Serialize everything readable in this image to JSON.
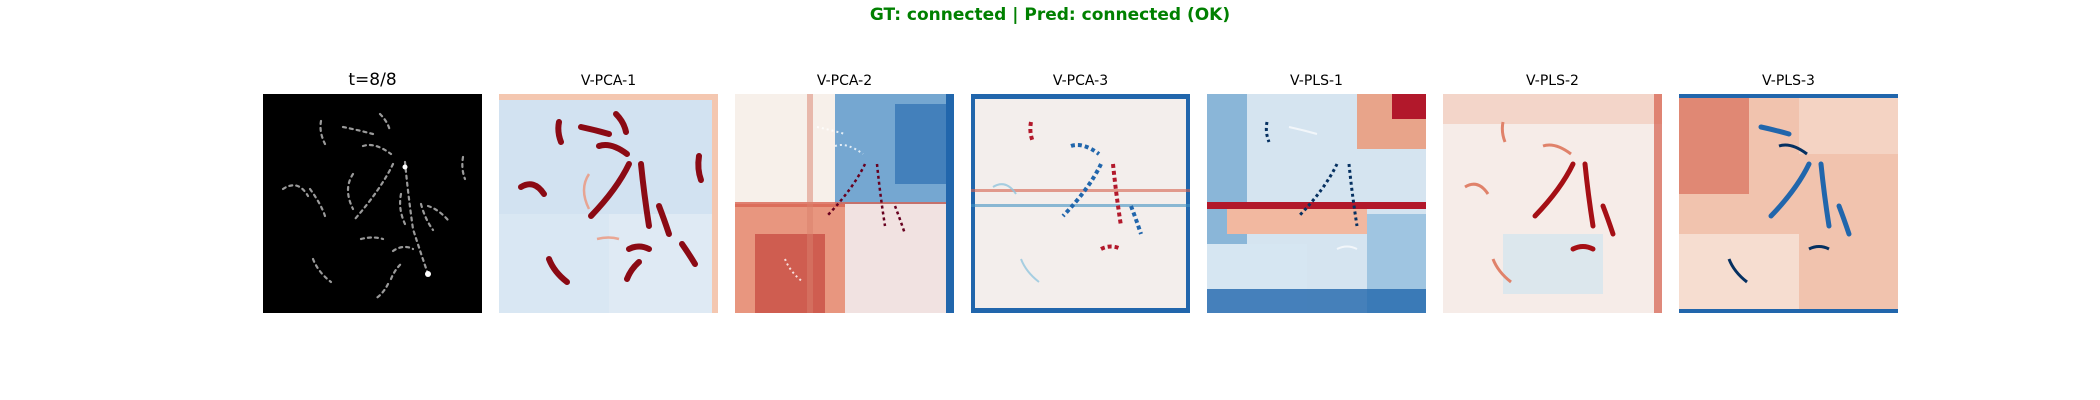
{
  "figure": {
    "suptitle": "GT: connected | Pred: connected (OK)",
    "colormap": "RdBu_r",
    "title_color": "#008000",
    "panels": [
      {
        "title": "t=8/8",
        "content": "grayscale input frame with dashed curved paths"
      },
      {
        "title": "V-PCA-1",
        "content": "diverging heatmap, mostly light blue with dark red stroke highlights"
      },
      {
        "title": "V-PCA-2",
        "content": "diverging heatmap, blue upper-right, red lower-left block"
      },
      {
        "title": "V-PCA-3",
        "content": "diverging heatmap with mixed red/blue stroke patterns"
      },
      {
        "title": "V-PLS-1",
        "content": "diverging heatmap with strong red horizontal band and blue regions"
      },
      {
        "title": "V-PLS-2",
        "content": "diverging heatmap, light with red stroke highlights"
      },
      {
        "title": "V-PLS-3",
        "content": "diverging heatmap, red background with blue stroke highlights"
      }
    ]
  }
}
